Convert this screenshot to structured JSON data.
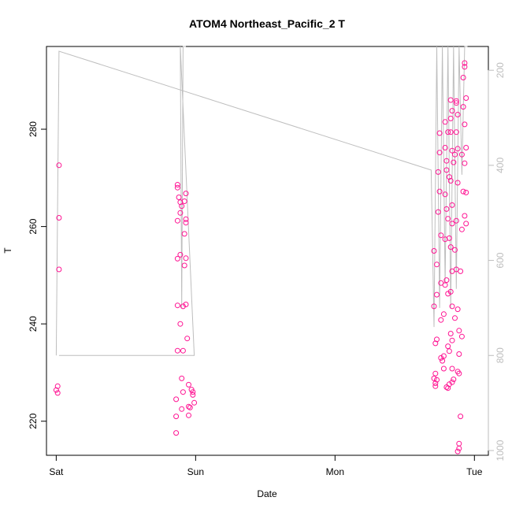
{
  "chart_data": {
    "type": "scatter",
    "title": "ATOM4 Northeast_Pacific_2 T",
    "xlabel": "Date",
    "ylabel": "T",
    "x_ticks": [
      "Sat",
      "Sun",
      "Mon",
      "Tue"
    ],
    "xlim_days": [
      -0.07,
      3.1
    ],
    "ylim": [
      213,
      297
    ],
    "y_ticks": [
      220,
      240,
      260,
      280
    ],
    "y2_ticks": [
      200,
      400,
      600,
      800,
      1000
    ],
    "y2lim": [
      1010,
      150
    ],
    "grid": false,
    "colors": {
      "points": "#ff1493",
      "line": "#bebebe"
    },
    "series": [
      {
        "values": [
          {
            "x": 0.02,
            "y": 272.6
          },
          {
            "x": 0.02,
            "y": 261.8
          },
          {
            "x": 0.02,
            "y": 251.2
          },
          {
            "x": 0.01,
            "y": 227.2
          },
          {
            "x": 0.0,
            "y": 226.4
          },
          {
            "x": 0.01,
            "y": 225.8
          },
          {
            "x": 0.87,
            "y": 268.6
          },
          {
            "x": 0.87,
            "y": 268.0
          },
          {
            "x": 0.88,
            "y": 266.0
          },
          {
            "x": 0.89,
            "y": 265.0
          },
          {
            "x": 0.87,
            "y": 261.2
          },
          {
            "x": 0.89,
            "y": 262.8
          },
          {
            "x": 0.9,
            "y": 264.2
          },
          {
            "x": 0.92,
            "y": 265.2
          },
          {
            "x": 0.93,
            "y": 266.8
          },
          {
            "x": 0.93,
            "y": 261.5
          },
          {
            "x": 0.93,
            "y": 260.8
          },
          {
            "x": 0.92,
            "y": 258.5
          },
          {
            "x": 0.89,
            "y": 254.2
          },
          {
            "x": 0.87,
            "y": 253.4
          },
          {
            "x": 0.93,
            "y": 253.5
          },
          {
            "x": 0.92,
            "y": 252.0
          },
          {
            "x": 0.87,
            "y": 243.8
          },
          {
            "x": 0.93,
            "y": 244.0
          },
          {
            "x": 0.91,
            "y": 243.6
          },
          {
            "x": 0.89,
            "y": 240.0
          },
          {
            "x": 0.94,
            "y": 237.0
          },
          {
            "x": 0.87,
            "y": 234.5
          },
          {
            "x": 0.91,
            "y": 234.5
          },
          {
            "x": 0.9,
            "y": 228.8
          },
          {
            "x": 0.95,
            "y": 227.5
          },
          {
            "x": 0.97,
            "y": 226.5
          },
          {
            "x": 0.98,
            "y": 226.0
          },
          {
            "x": 0.98,
            "y": 225.4
          },
          {
            "x": 0.91,
            "y": 226.0
          },
          {
            "x": 0.86,
            "y": 224.5
          },
          {
            "x": 0.99,
            "y": 223.8
          },
          {
            "x": 0.95,
            "y": 223.0
          },
          {
            "x": 0.96,
            "y": 222.8
          },
          {
            "x": 0.9,
            "y": 222.5
          },
          {
            "x": 0.86,
            "y": 221.0
          },
          {
            "x": 0.95,
            "y": 221.2
          },
          {
            "x": 0.86,
            "y": 217.6
          },
          {
            "x": 2.71,
            "y": 255.0
          },
          {
            "x": 2.75,
            "y": 279.2
          },
          {
            "x": 2.75,
            "y": 275.2
          },
          {
            "x": 2.74,
            "y": 271.2
          },
          {
            "x": 2.75,
            "y": 267.2
          },
          {
            "x": 2.74,
            "y": 263.0
          },
          {
            "x": 2.76,
            "y": 258.2
          },
          {
            "x": 2.73,
            "y": 252.2
          },
          {
            "x": 2.76,
            "y": 248.4
          },
          {
            "x": 2.73,
            "y": 246.0
          },
          {
            "x": 2.71,
            "y": 243.6
          },
          {
            "x": 2.76,
            "y": 240.8
          },
          {
            "x": 2.73,
            "y": 236.8
          },
          {
            "x": 2.72,
            "y": 236.0
          },
          {
            "x": 2.76,
            "y": 233.0
          },
          {
            "x": 2.77,
            "y": 232.4
          },
          {
            "x": 2.78,
            "y": 233.4
          },
          {
            "x": 2.72,
            "y": 229.8
          },
          {
            "x": 2.71,
            "y": 228.8
          },
          {
            "x": 2.73,
            "y": 228.5
          },
          {
            "x": 2.72,
            "y": 227.8
          },
          {
            "x": 2.72,
            "y": 227.2
          },
          {
            "x": 2.78,
            "y": 230.8
          },
          {
            "x": 2.79,
            "y": 281.5
          },
          {
            "x": 2.81,
            "y": 279.4
          },
          {
            "x": 2.79,
            "y": 276.2
          },
          {
            "x": 2.8,
            "y": 273.5
          },
          {
            "x": 2.8,
            "y": 271.6
          },
          {
            "x": 2.82,
            "y": 270.2
          },
          {
            "x": 2.79,
            "y": 266.6
          },
          {
            "x": 2.8,
            "y": 263.6
          },
          {
            "x": 2.79,
            "y": 257.4
          },
          {
            "x": 2.8,
            "y": 249.0
          },
          {
            "x": 2.79,
            "y": 248.0
          },
          {
            "x": 2.78,
            "y": 242.0
          },
          {
            "x": 2.81,
            "y": 246.2
          },
          {
            "x": 2.82,
            "y": 257.6
          },
          {
            "x": 2.81,
            "y": 261.6
          },
          {
            "x": 2.83,
            "y": 286.0
          },
          {
            "x": 2.84,
            "y": 283.8
          },
          {
            "x": 2.83,
            "y": 282.2
          },
          {
            "x": 2.83,
            "y": 279.4
          },
          {
            "x": 2.84,
            "y": 275.6
          },
          {
            "x": 2.85,
            "y": 273.2
          },
          {
            "x": 2.83,
            "y": 269.4
          },
          {
            "x": 2.84,
            "y": 264.4
          },
          {
            "x": 2.84,
            "y": 260.6
          },
          {
            "x": 2.83,
            "y": 255.8
          },
          {
            "x": 2.84,
            "y": 250.8
          },
          {
            "x": 2.83,
            "y": 246.6
          },
          {
            "x": 2.84,
            "y": 243.6
          },
          {
            "x": 2.83,
            "y": 238.0
          },
          {
            "x": 2.84,
            "y": 236.6
          },
          {
            "x": 2.82,
            "y": 234.4
          },
          {
            "x": 2.81,
            "y": 235.4
          },
          {
            "x": 2.84,
            "y": 230.8
          },
          {
            "x": 2.85,
            "y": 228.6
          },
          {
            "x": 2.84,
            "y": 228.0
          },
          {
            "x": 2.82,
            "y": 227.6
          },
          {
            "x": 2.8,
            "y": 227.0
          },
          {
            "x": 2.81,
            "y": 226.8
          },
          {
            "x": 2.87,
            "y": 285.8
          },
          {
            "x": 2.87,
            "y": 285.4
          },
          {
            "x": 2.88,
            "y": 283.0
          },
          {
            "x": 2.87,
            "y": 279.4
          },
          {
            "x": 2.88,
            "y": 276.0
          },
          {
            "x": 2.86,
            "y": 274.8
          },
          {
            "x": 2.88,
            "y": 269.0
          },
          {
            "x": 2.87,
            "y": 261.2
          },
          {
            "x": 2.86,
            "y": 255.2
          },
          {
            "x": 2.87,
            "y": 251.2
          },
          {
            "x": 2.88,
            "y": 243.0
          },
          {
            "x": 2.86,
            "y": 241.2
          },
          {
            "x": 2.89,
            "y": 233.8
          },
          {
            "x": 2.88,
            "y": 230.2
          },
          {
            "x": 2.89,
            "y": 229.8
          },
          {
            "x": 2.9,
            "y": 221.0
          },
          {
            "x": 2.89,
            "y": 238.6
          },
          {
            "x": 2.91,
            "y": 237.4
          },
          {
            "x": 2.9,
            "y": 250.8
          },
          {
            "x": 2.92,
            "y": 267.2
          },
          {
            "x": 2.91,
            "y": 274.8
          },
          {
            "x": 2.92,
            "y": 284.6
          },
          {
            "x": 2.93,
            "y": 293.6
          },
          {
            "x": 2.93,
            "y": 292.8
          },
          {
            "x": 2.92,
            "y": 290.6
          },
          {
            "x": 2.94,
            "y": 286.4
          },
          {
            "x": 2.93,
            "y": 281.0
          },
          {
            "x": 2.93,
            "y": 273.0
          },
          {
            "x": 2.94,
            "y": 267.0
          },
          {
            "x": 2.93,
            "y": 262.2
          },
          {
            "x": 2.94,
            "y": 260.6
          },
          {
            "x": 2.91,
            "y": 259.4
          },
          {
            "x": 2.89,
            "y": 215.4
          },
          {
            "x": 2.89,
            "y": 214.4
          },
          {
            "x": 2.88,
            "y": 213.8
          },
          {
            "x": 2.94,
            "y": 276.2
          }
        ]
      }
    ],
    "line_polyline": [
      {
        "x": 0.0,
        "y2": 800
      },
      {
        "x": 0.02,
        "y2": 160
      },
      {
        "x": 2.69,
        "y2": 410
      },
      {
        "x": 2.71,
        "y2": 740
      },
      {
        "x": 2.73,
        "y2": 150
      },
      {
        "x": 2.75,
        "y2": 700
      },
      {
        "x": 2.77,
        "y2": 150
      },
      {
        "x": 2.79,
        "y2": 650
      },
      {
        "x": 2.81,
        "y2": 150
      },
      {
        "x": 2.83,
        "y2": 700
      },
      {
        "x": 2.85,
        "y2": 150
      },
      {
        "x": 2.87,
        "y2": 660
      },
      {
        "x": 2.89,
        "y2": 150
      },
      {
        "x": 2.91,
        "y2": 420
      },
      {
        "x": 2.93,
        "y2": 150
      },
      {
        "x": 2.95,
        "y2": 150
      }
    ],
    "line_polyline_2": [
      {
        "x": 0.02,
        "y2": 800
      },
      {
        "x": 0.99,
        "y2": 800
      },
      {
        "x": 0.89,
        "y2": 150
      },
      {
        "x": 0.9,
        "y2": 700
      },
      {
        "x": 0.91,
        "y2": 150
      },
      {
        "x": 0.93,
        "y2": 150
      }
    ]
  }
}
